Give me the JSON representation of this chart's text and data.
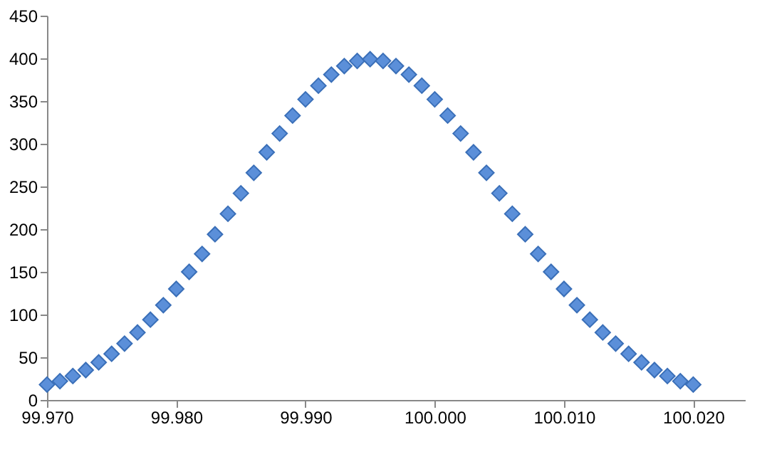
{
  "chart_data": {
    "type": "scatter",
    "marker": "diamond",
    "x": [
      99.97,
      99.971,
      99.972,
      99.973,
      99.974,
      99.975,
      99.976,
      99.977,
      99.978,
      99.979,
      99.98,
      99.981,
      99.982,
      99.983,
      99.984,
      99.985,
      99.986,
      99.987,
      99.988,
      99.989,
      99.99,
      99.991,
      99.992,
      99.993,
      99.994,
      99.995,
      99.996,
      99.997,
      99.998,
      99.999,
      100.0,
      100.001,
      100.002,
      100.003,
      100.004,
      100.005,
      100.006,
      100.007,
      100.008,
      100.009,
      100.01,
      100.011,
      100.012,
      100.013,
      100.014,
      100.015,
      100.016,
      100.017,
      100.018,
      100.019,
      100.02
    ],
    "series": [
      {
        "color": "#5b8fd9",
        "values": [
          18,
          22,
          28,
          35,
          44,
          54,
          66,
          79,
          94,
          111,
          130,
          150,
          171,
          194,
          218,
          242,
          266,
          290,
          312,
          333,
          352,
          368,
          381,
          391,
          397,
          399,
          397,
          391,
          381,
          368,
          352,
          333,
          312,
          290,
          266,
          242,
          218,
          194,
          171,
          150,
          130,
          111,
          94,
          79,
          66,
          54,
          44,
          35,
          28,
          22,
          18
        ]
      }
    ],
    "xlim": [
      99.97,
      100.024
    ],
    "xticks": [
      {
        "value": 99.97,
        "label": "99.970"
      },
      {
        "value": 99.98,
        "label": "99.980"
      },
      {
        "value": 99.99,
        "label": "99.990"
      },
      {
        "value": 100.0,
        "label": "100.000"
      },
      {
        "value": 100.01,
        "label": "100.010"
      },
      {
        "value": 100.02,
        "label": "100.020"
      }
    ],
    "ylim": [
      0,
      450
    ],
    "yticks": [
      0,
      50,
      100,
      150,
      200,
      250,
      300,
      350,
      400,
      450
    ]
  }
}
